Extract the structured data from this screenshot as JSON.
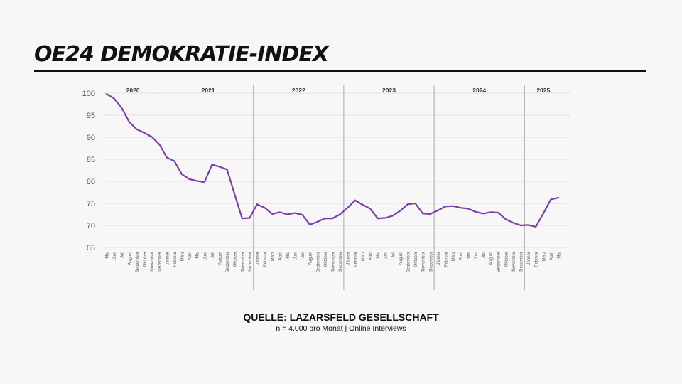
{
  "title": "OE24 DEMOKRATIE-INDEX",
  "source": {
    "title": "QUELLE: LAZARSFELD GESELLSCHAFT",
    "subtitle": "n = 4.000 pro Monat | Online Interviews"
  },
  "colors": {
    "line": "#7b3fa6",
    "grid": "#e2e2e2",
    "divider": "#aaaaaa",
    "text": "#555555"
  },
  "chart_data": {
    "type": "line",
    "title": "",
    "xlabel": "",
    "ylabel": "",
    "ylim": [
      65,
      100
    ],
    "yticks": [
      65,
      70,
      75,
      80,
      85,
      90,
      95,
      100
    ],
    "grid": true,
    "years": [
      {
        "label": "2020",
        "start": 0,
        "count": 8
      },
      {
        "label": "2021",
        "start": 8,
        "count": 12
      },
      {
        "label": "2022",
        "start": 20,
        "count": 12
      },
      {
        "label": "2023",
        "start": 32,
        "count": 12
      },
      {
        "label": "2024",
        "start": 44,
        "count": 12
      },
      {
        "label": "2025",
        "start": 56,
        "count": 5
      }
    ],
    "categories": [
      "Mai",
      "Juni",
      "Juli",
      "August",
      "September",
      "Oktober",
      "November",
      "Dezember",
      "Jänner",
      "Februar",
      "März",
      "April",
      "Mai",
      "Juni",
      "Juli",
      "August",
      "September",
      "Oktober",
      "November",
      "Dezember",
      "Jänner",
      "Februar",
      "März",
      "April",
      "Mai",
      "Juni",
      "Juli",
      "August",
      "September",
      "Oktober",
      "November",
      "Dezember",
      "Jänner",
      "Februar",
      "März",
      "April",
      "Mai",
      "Juni",
      "Juli",
      "August",
      "September",
      "Oktober",
      "November",
      "Dezember",
      "Jänner",
      "Februar",
      "März",
      "April",
      "Mai",
      "Juni",
      "Juli",
      "August",
      "September",
      "Oktober",
      "November",
      "Dezember",
      "Jänner",
      "Februar",
      "März",
      "April",
      "Mai"
    ],
    "series": [
      {
        "values": [
          99.8,
          98.8,
          96.7,
          93.5,
          91.8,
          91.0,
          90.1,
          88.4,
          85.4,
          84.6,
          81.6,
          80.5,
          80.1,
          79.8,
          83.8,
          83.3,
          82.7,
          77.1,
          71.6,
          71.7,
          74.8,
          74.0,
          72.6,
          73.0,
          72.5,
          72.8,
          72.4,
          70.2,
          70.8,
          71.6,
          71.6,
          72.5,
          74.0,
          75.7,
          74.7,
          73.8,
          71.6,
          71.7,
          72.2,
          73.3,
          74.8,
          75.0,
          72.7,
          72.6,
          73.4,
          74.3,
          74.4,
          74.0,
          73.8,
          73.1,
          72.7,
          73.0,
          72.9,
          71.4,
          70.6,
          70.0,
          70.1,
          69.7,
          72.7,
          75.9,
          76.3
        ]
      }
    ]
  }
}
